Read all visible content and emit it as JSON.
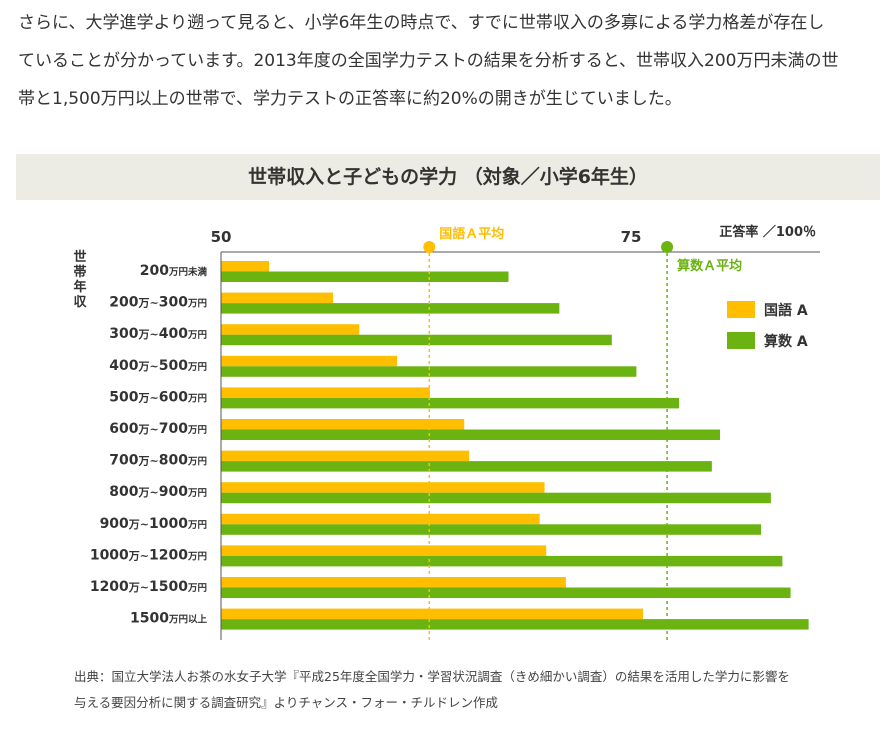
{
  "intro_lines": [
    "さらに、大学進学より遡って見ると、小学6年生の時点で、すでに世帯収入の多寡による学力格差が存在し",
    "ていることが分かっています。2013年度の全国学力テストの結果を分析すると、世帯収入200万円未満の世",
    "帯と1,500万円以上の世帯で、学力テストの正答率に約20%の開きが生じていました。"
  ],
  "source_lines": [
    "出典：国立大学法人お茶の水女子大学『平成25年度全国学力・学習状況調査（きめ細かい調査）の結果を活用した学力に影響を",
    "与える要因分析に関する調査研究』よりチャンス・フォー・チルドレン作成"
  ],
  "chart_data": {
    "type": "bar",
    "orientation": "horizontal",
    "title": "世帯収入と子どもの学力 （対象／小学6年生）",
    "xlabel": "正答率 ／100％",
    "ylabel": "世帯年収",
    "xlim": [
      50,
      86
    ],
    "xticks": [
      50,
      75
    ],
    "categories": [
      {
        "num": "200",
        "unit": "万円未満"
      },
      {
        "num": "200",
        "mid": "万~",
        "num2": "300",
        "unit": "万円"
      },
      {
        "num": "300",
        "mid": "万~",
        "num2": "400",
        "unit": "万円"
      },
      {
        "num": "400",
        "mid": "万~",
        "num2": "500",
        "unit": "万円"
      },
      {
        "num": "500",
        "mid": "万~",
        "num2": "600",
        "unit": "万円"
      },
      {
        "num": "600",
        "mid": "万~",
        "num2": "700",
        "unit": "万円"
      },
      {
        "num": "700",
        "mid": "万~",
        "num2": "800",
        "unit": "万円"
      },
      {
        "num": "800",
        "mid": "万~",
        "num2": "900",
        "unit": "万円"
      },
      {
        "num": "900",
        "mid": "万~",
        "num2": "1000",
        "unit": "万円"
      },
      {
        "num": "1000",
        "mid": "万~",
        "num2": "1200",
        "unit": "万円"
      },
      {
        "num": "1200",
        "mid": "万~",
        "num2": "1500",
        "unit": "万円"
      },
      {
        "num": "1500",
        "unit": "万円以上"
      }
    ],
    "series": [
      {
        "name": "国語 A",
        "color": "#ffbe00",
        "values": [
          52.9,
          56.8,
          58.4,
          60.7,
          62.7,
          64.8,
          65.1,
          69.7,
          69.4,
          69.8,
          71.0,
          75.7
        ]
      },
      {
        "name": "算数 A",
        "color": "#6ab311",
        "values": [
          67.5,
          70.6,
          73.8,
          75.3,
          77.9,
          80.4,
          79.9,
          83.5,
          82.9,
          84.2,
          84.7,
          85.8
        ]
      }
    ],
    "average_lines": [
      {
        "label": "国語Ａ平均",
        "value": 62.7,
        "color": "#ffbe00"
      },
      {
        "label": "算数Ａ平均",
        "value": 77.2,
        "color": "#6ab311"
      }
    ],
    "legend": "right",
    "grid": false
  }
}
